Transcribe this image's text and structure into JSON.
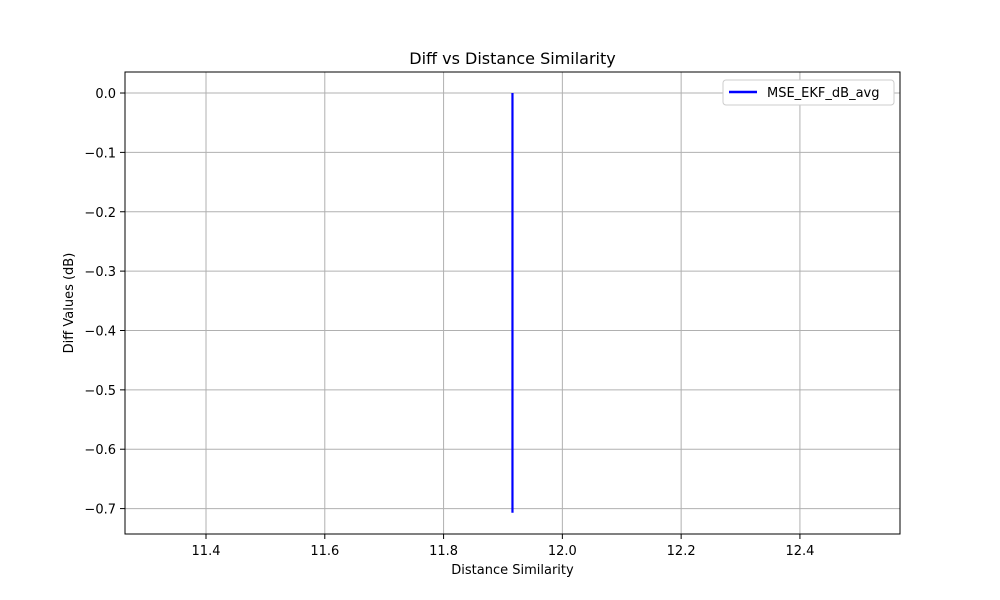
{
  "chart_data": {
    "type": "line",
    "title": "Diff vs Distance Similarity",
    "xlabel": "Distance Similarity",
    "ylabel": "Diff Values (dB)",
    "xlim": [
      11.2636,
      12.5685
    ],
    "ylim": [
      -0.7428,
      0.0354
    ],
    "xticks": [
      11.4,
      11.6,
      11.8,
      12.0,
      12.2,
      12.4
    ],
    "xtick_labels": [
      "11.4",
      "11.6",
      "11.8",
      "12.0",
      "12.2",
      "12.4"
    ],
    "yticks": [
      0.0,
      -0.1,
      -0.2,
      -0.3,
      -0.4,
      -0.5,
      -0.6,
      -0.7
    ],
    "ytick_labels": [
      "0.0",
      "−0.1",
      "−0.2",
      "−0.3",
      "−0.4",
      "−0.5",
      "−0.6",
      "−0.7"
    ],
    "grid": true,
    "legend_position": "top-right",
    "series": [
      {
        "name": "MSE_EKF_dB_avg",
        "color": "#0000ff",
        "x": [
          11.916,
          11.916
        ],
        "y": [
          0.0,
          -0.707
        ]
      }
    ]
  }
}
